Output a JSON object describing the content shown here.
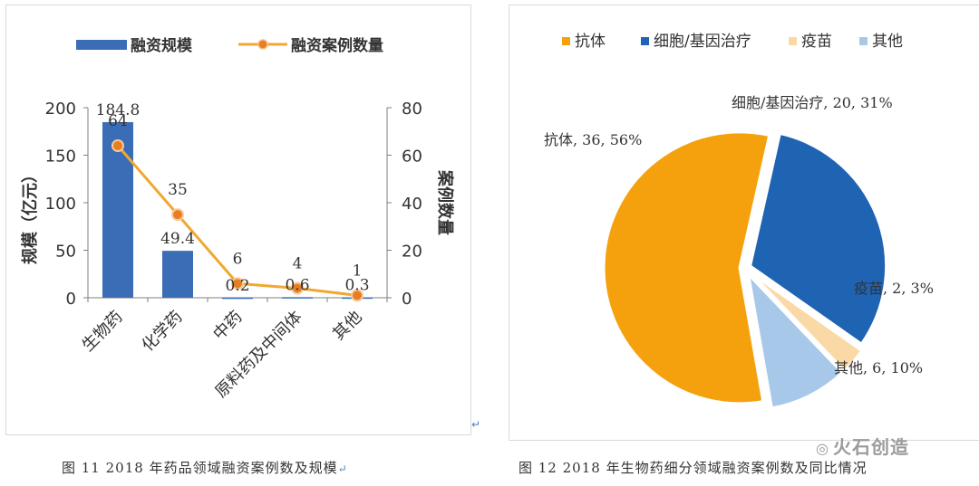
{
  "chart_data": [
    {
      "type": "bar",
      "categories": [
        "生物药",
        "化学药",
        "中药",
        "原料药及中间体",
        "其他"
      ],
      "series": [
        {
          "name": "融资规模",
          "kind": "bar",
          "axis": "left",
          "values": [
            184.8,
            49.4,
            0.2,
            0.6,
            0.3
          ],
          "labels": [
            "184.8",
            "49.4",
            "0.2",
            "0.6",
            "0.3"
          ]
        },
        {
          "name": "融资案例数量",
          "kind": "line",
          "axis": "right",
          "values": [
            64,
            35,
            6,
            4,
            1
          ],
          "labels": [
            "64",
            "35",
            "6",
            "4",
            "1"
          ]
        }
      ],
      "ylabel": "规模（亿元）",
      "y2label": "案例数量",
      "ylim": [
        0,
        200
      ],
      "y2lim": [
        0,
        80
      ],
      "yticks": [
        "0",
        "50",
        "100",
        "150",
        "200"
      ],
      "y2ticks": [
        "0",
        "20",
        "40",
        "60",
        "80"
      ],
      "legend": "top",
      "colors": {
        "bar": "#3a6db5",
        "line": "#f0a830",
        "marker": "#e67e22"
      }
    },
    {
      "type": "pie",
      "labels": [
        "抗体",
        "细胞/基因治疗",
        "疫苗",
        "其他"
      ],
      "values": [
        36,
        20,
        2,
        6
      ],
      "percents": [
        "56%",
        "31%",
        "3%",
        "10%"
      ],
      "slice_labels": [
        "抗体, 36, 56%",
        "细胞/基因治疗, 20, 31%",
        "疫苗, 2, 3%",
        "其他, 6, 10%"
      ],
      "legend": "top",
      "colors": [
        "#f5a10d",
        "#1f63b3",
        "#fad9a6",
        "#a8c8ea"
      ]
    }
  ],
  "captions": {
    "left": "图 11   2018 年药品领域融资案例数及规模",
    "right": "图 12   2018 年生物药细分领域融资案例数及同比情况"
  },
  "watermark": "火石创造",
  "return_mark": "↵"
}
